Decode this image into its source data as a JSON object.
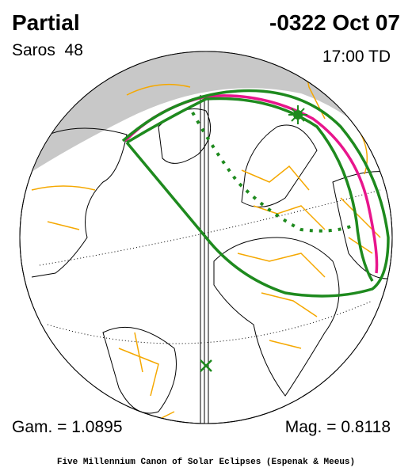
{
  "header": {
    "type": "Partial",
    "saros": "Saros  48",
    "date": "-0322 Oct 07",
    "time": "17:00 TD"
  },
  "footer": {
    "gamma": "Gam. = 1.0895",
    "magnitude": "Mag. = 0.8118",
    "credit": "Five Millennium Canon of Solar Eclipses (Espenak & Meeus)"
  }
}
